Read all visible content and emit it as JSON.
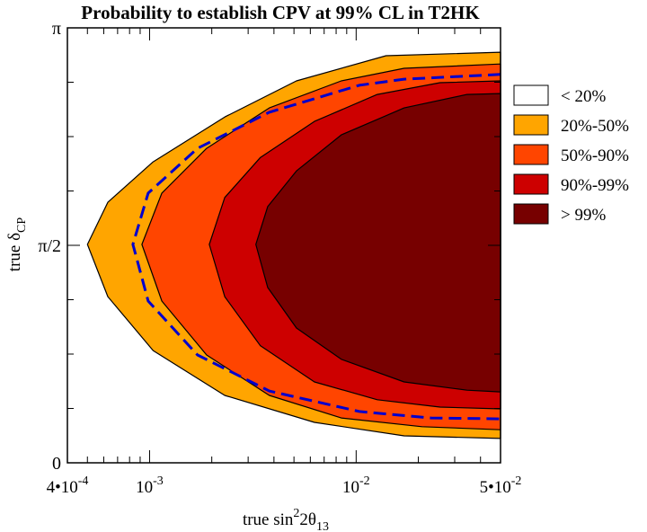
{
  "chart_data": {
    "type": "contour",
    "title": "Probability to establish CPV at 99% CL in T2HK",
    "xlabel": {
      "main": "true  sin",
      "sup": "2",
      "mid": "2θ",
      "sub": "13"
    },
    "ylabel": {
      "main": "true  δ",
      "sub": "CP"
    },
    "x_scale": "log",
    "xlim": [
      0.0004,
      0.05
    ],
    "ylim_pi_units": [
      0,
      1
    ],
    "x_ticks": [
      {
        "value": 0.0004,
        "base": "4•10",
        "exp": "-4"
      },
      {
        "value": 0.001,
        "base": "10",
        "exp": "-3"
      },
      {
        "value": 0.01,
        "base": "10",
        "exp": "-2"
      },
      {
        "value": 0.05,
        "base": "5•10",
        "exp": "-2"
      }
    ],
    "y_ticks": [
      {
        "value_pi": 0,
        "label": "0"
      },
      {
        "value_pi": 0.5,
        "label": "π/2"
      },
      {
        "value_pi": 1,
        "label": "π"
      }
    ],
    "grid": false,
    "legend_placement": "right",
    "regions": [
      {
        "name": "20%-50%",
        "color": "#ffa500",
        "boundary": [
          [
            0.05,
            0.944
          ],
          [
            0.01396,
            0.936
          ],
          [
            0.00514,
            0.878
          ],
          [
            0.00231,
            0.795
          ],
          [
            0.00104,
            0.692
          ],
          [
            0.000628,
            0.599
          ],
          [
            0.0005,
            0.502
          ],
          [
            0.000628,
            0.382
          ],
          [
            0.00104,
            0.258
          ],
          [
            0.00231,
            0.155
          ],
          [
            0.00628,
            0.093
          ],
          [
            0.01706,
            0.062
          ],
          [
            0.05,
            0.056
          ]
        ]
      },
      {
        "name": "50%-90%",
        "color": "#ff4500",
        "boundary": [
          [
            0.05,
            0.917
          ],
          [
            0.01706,
            0.907
          ],
          [
            0.00847,
            0.878
          ],
          [
            0.0038,
            0.816
          ],
          [
            0.001888,
            0.723
          ],
          [
            0.001146,
            0.62
          ],
          [
            0.000918,
            0.502
          ],
          [
            0.001146,
            0.372
          ],
          [
            0.001888,
            0.248
          ],
          [
            0.0038,
            0.155
          ],
          [
            0.00847,
            0.103
          ],
          [
            0.02084,
            0.083
          ],
          [
            0.05,
            0.076
          ]
        ]
      },
      {
        "name": "90%-99%",
        "color": "#cd0000",
        "boundary": [
          [
            0.05,
            0.878
          ],
          [
            0.02547,
            0.874
          ],
          [
            0.01265,
            0.847
          ],
          [
            0.00628,
            0.785
          ],
          [
            0.00344,
            0.702
          ],
          [
            0.00231,
            0.61
          ],
          [
            0.001945,
            0.502
          ],
          [
            0.00231,
            0.382
          ],
          [
            0.00344,
            0.269
          ],
          [
            0.00628,
            0.186
          ],
          [
            0.01265,
            0.145
          ],
          [
            0.02547,
            0.128
          ],
          [
            0.05,
            0.124
          ]
        ]
      },
      {
        "name": "> 99%",
        "color": "#770000",
        "boundary": [
          [
            0.05,
            0.849
          ],
          [
            0.0344,
            0.847
          ],
          [
            0.01706,
            0.816
          ],
          [
            0.00847,
            0.754
          ],
          [
            0.00514,
            0.671
          ],
          [
            0.00373,
            0.589
          ],
          [
            0.00327,
            0.502
          ],
          [
            0.00373,
            0.403
          ],
          [
            0.00514,
            0.31
          ],
          [
            0.00847,
            0.238
          ],
          [
            0.01706,
            0.186
          ],
          [
            0.0344,
            0.167
          ],
          [
            0.05,
            0.163
          ]
        ]
      }
    ],
    "dashed_curve": {
      "color": "#0000cd",
      "points": [
        [
          0.05,
          0.893
        ],
        [
          0.01706,
          0.882
        ],
        [
          0.01035,
          0.868
        ],
        [
          0.0038,
          0.806
        ],
        [
          0.001706,
          0.723
        ],
        [
          0.000984,
          0.62
        ],
        [
          0.00083,
          0.502
        ],
        [
          0.000984,
          0.372
        ],
        [
          0.001706,
          0.248
        ],
        [
          0.0038,
          0.165
        ],
        [
          0.01035,
          0.118
        ],
        [
          0.02307,
          0.103
        ],
        [
          0.05,
          0.101
        ]
      ]
    },
    "legend": [
      {
        "label": "< 20%",
        "color": "#ffffff"
      },
      {
        "label": "20%-50%",
        "color": "#ffa500"
      },
      {
        "label": "50%-90%",
        "color": "#ff4500"
      },
      {
        "label": "90%-99%",
        "color": "#cd0000"
      },
      {
        "label": "> 99%",
        "color": "#770000"
      }
    ]
  }
}
